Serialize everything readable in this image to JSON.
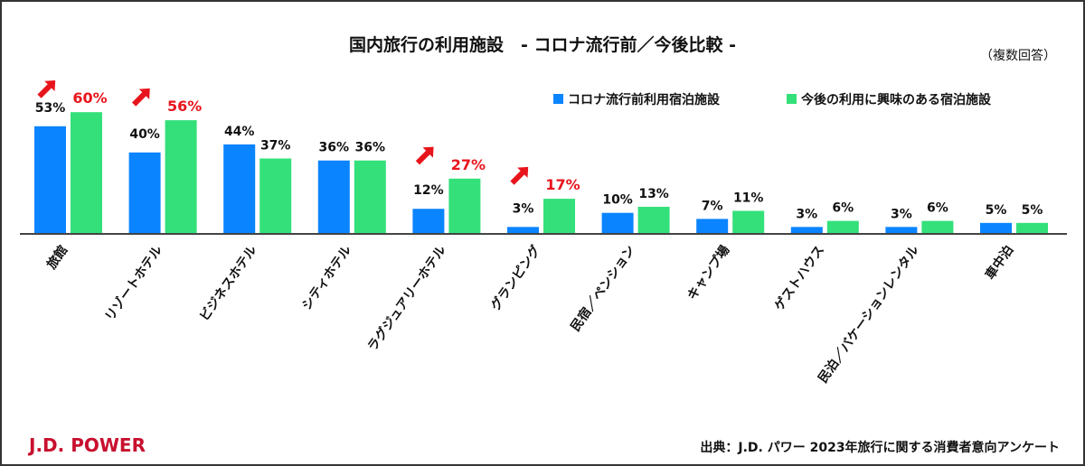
{
  "chart_data": {
    "type": "bar",
    "title": "国内旅行の利用施設　- コロナ流行前／今後比較 -",
    "subtitle": "（複数回答）",
    "categories": [
      "旅館",
      "リゾートホテル",
      "ビジネスホテル",
      "シティホテル",
      "ラグジュアリーホテル",
      "グランピング",
      "民宿／ペンション",
      "キャンプ場",
      "ゲストハウス",
      "民泊／バケーションレンタル",
      "車中泊"
    ],
    "series": [
      {
        "name": "コロナ流行前利用宿泊施設",
        "color": "#0a84ff",
        "values": [
          53,
          40,
          44,
          36,
          12,
          3,
          10,
          7,
          3,
          3,
          5
        ]
      },
      {
        "name": "今後の利用に興味のある宿泊施設",
        "color": "#33e07a",
        "values": [
          60,
          56,
          37,
          36,
          27,
          17,
          13,
          11,
          6,
          6,
          5
        ]
      }
    ],
    "highlighted_categories": [
      "旅館",
      "リゾートホテル",
      "ラグジュアリーホテル",
      "グランピング"
    ],
    "highlight_color": "#e8141c",
    "value_suffix": "%",
    "ylim": [
      0,
      65
    ],
    "grid": false,
    "legend_position": "top-right"
  },
  "footer": {
    "logo": "J.D. POWER",
    "logo_color": "#c8102e",
    "source": "出典：J.D. パワー 2023年旅行に関する消費者意向アンケート"
  }
}
